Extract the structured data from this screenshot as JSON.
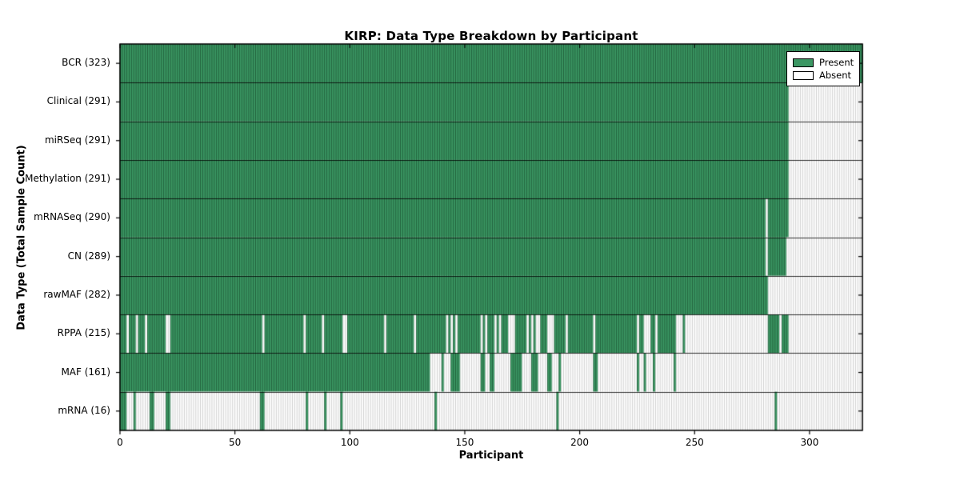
{
  "chart_data": {
    "type": "heatmap",
    "title": "KIRP: Data Type Breakdown by Participant",
    "xlabel": "Participant",
    "ylabel": "Data Type (Total Sample Count)",
    "x_ticks": [
      0,
      50,
      100,
      150,
      200,
      250,
      300
    ],
    "xlim": [
      0,
      323
    ],
    "n_participants": 323,
    "grid": false,
    "legend": {
      "position": "upper right",
      "entries": [
        {
          "label": "Present",
          "color": "#3b9763"
        },
        {
          "label": "Absent",
          "color": "#ffffff"
        }
      ]
    },
    "colors": {
      "present": "#3b9763",
      "present_edge": "#1f5c39",
      "absent": "#ffffff",
      "absent_edge": "#cbcbcb",
      "row_divider": "rgba(0,0,0,0.8)",
      "axis": "#000000"
    },
    "rows": [
      {
        "name": "BCR",
        "count": 323,
        "label": "BCR (323)",
        "present_segments": [
          [
            0,
            322
          ]
        ]
      },
      {
        "name": "Clinical",
        "count": 291,
        "label": "Clinical (291)",
        "present_segments": [
          [
            0,
            290
          ]
        ]
      },
      {
        "name": "miRSeq",
        "count": 291,
        "label": "miRSeq (291)",
        "present_segments": [
          [
            0,
            290
          ]
        ]
      },
      {
        "name": "Methylation",
        "count": 291,
        "label": "Methylation (291)",
        "present_segments": [
          [
            0,
            290
          ]
        ]
      },
      {
        "name": "mRNASeq",
        "count": 290,
        "label": "mRNASeq (290)",
        "present_segments": [
          [
            0,
            280
          ],
          [
            282,
            290
          ]
        ]
      },
      {
        "name": "CN",
        "count": 289,
        "label": "CN (289)",
        "present_segments": [
          [
            0,
            280
          ],
          [
            282,
            289
          ]
        ]
      },
      {
        "name": "rawMAF",
        "count": 282,
        "label": "rawMAF (282)",
        "present_segments": [
          [
            0,
            281
          ]
        ]
      },
      {
        "name": "RPPA",
        "count": 215,
        "label": "RPPA (215)",
        "present_segments": [
          [
            0,
            2
          ],
          [
            4,
            6
          ],
          [
            8,
            10
          ],
          [
            12,
            19
          ],
          [
            22,
            61
          ],
          [
            63,
            79
          ],
          [
            81,
            87
          ],
          [
            89,
            96
          ],
          [
            99,
            114
          ],
          [
            116,
            127
          ],
          [
            129,
            141
          ],
          [
            143,
            143
          ],
          [
            145,
            145
          ],
          [
            147,
            156
          ],
          [
            158,
            158
          ],
          [
            160,
            162
          ],
          [
            164,
            164
          ],
          [
            166,
            168
          ],
          [
            172,
            176
          ],
          [
            178,
            178
          ],
          [
            180,
            180
          ],
          [
            183,
            185
          ],
          [
            189,
            193
          ],
          [
            195,
            205
          ],
          [
            207,
            224
          ],
          [
            226,
            227
          ],
          [
            231,
            232
          ],
          [
            234,
            241
          ],
          [
            245,
            245
          ],
          [
            282,
            286
          ],
          [
            288,
            290
          ]
        ]
      },
      {
        "name": "MAF",
        "count": 161,
        "label": "MAF (161)",
        "present_segments": [
          [
            0,
            134
          ],
          [
            140,
            140
          ],
          [
            144,
            147
          ],
          [
            157,
            158
          ],
          [
            161,
            162
          ],
          [
            170,
            174
          ],
          [
            179,
            181
          ],
          [
            186,
            187
          ],
          [
            191,
            191
          ],
          [
            206,
            207
          ],
          [
            225,
            225
          ],
          [
            228,
            228
          ],
          [
            232,
            232
          ],
          [
            241,
            241
          ]
        ]
      },
      {
        "name": "mRNA",
        "count": 16,
        "label": "mRNA (16)",
        "present_segments": [
          [
            0,
            2
          ],
          [
            6,
            6
          ],
          [
            13,
            14
          ],
          [
            20,
            21
          ],
          [
            61,
            62
          ],
          [
            81,
            81
          ],
          [
            89,
            89
          ],
          [
            96,
            96
          ],
          [
            137,
            137
          ],
          [
            190,
            190
          ],
          [
            285,
            285
          ]
        ]
      }
    ]
  }
}
